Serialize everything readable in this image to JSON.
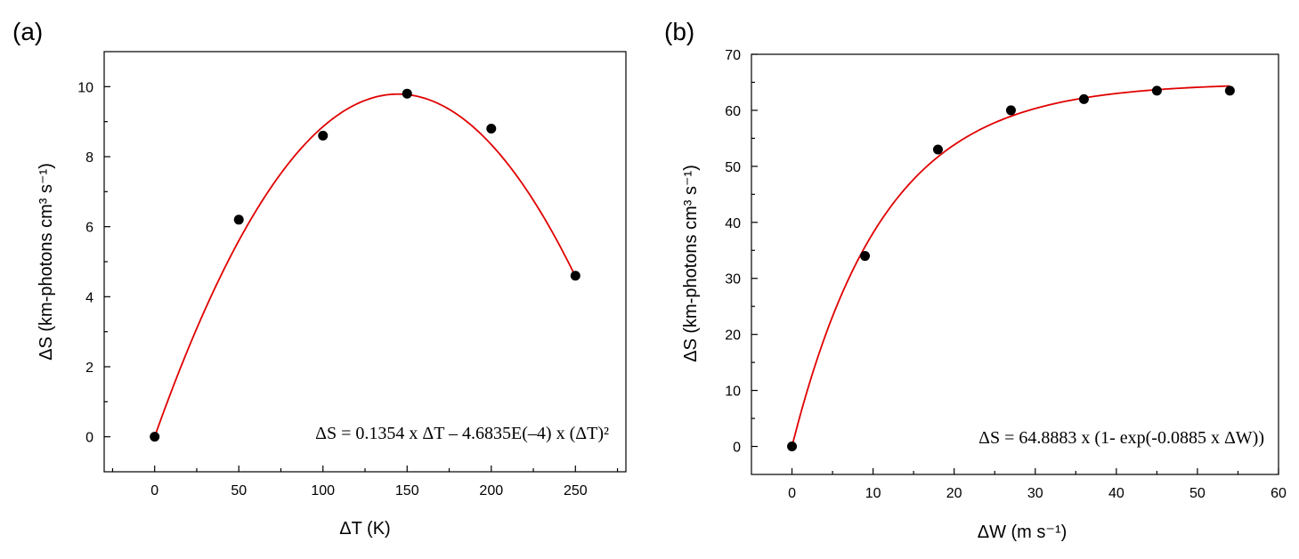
{
  "chart_data": [
    {
      "type": "scatter",
      "panel_label": "(a)",
      "xlabel": "ΔT (K)",
      "ylabel": "ΔS (km-photons cm³ s⁻¹)",
      "xlim": [
        -30,
        280
      ],
      "ylim": [
        -1,
        11
      ],
      "xticks": [
        0,
        50,
        100,
        150,
        200,
        250
      ],
      "yticks": [
        0,
        2,
        4,
        6,
        8,
        10
      ],
      "series": [
        {
          "name": "data",
          "x": [
            0,
            50,
            100,
            150,
            200,
            250
          ],
          "y": [
            0.0,
            6.2,
            8.6,
            9.8,
            8.8,
            4.6
          ]
        }
      ],
      "fit": {
        "model": "quadratic",
        "a": 0.1354,
        "b": -0.00046835,
        "x_range": [
          0,
          250
        ],
        "equation_text": "ΔS = 0.1354 x ΔT – 4.6835E(–4) x (ΔT)²",
        "color": "#e00000"
      }
    },
    {
      "type": "scatter",
      "panel_label": "(b)",
      "xlabel": "ΔW (m s⁻¹)",
      "ylabel": "ΔS (km-photons cm³ s⁻¹)",
      "xlim": [
        -5,
        60
      ],
      "ylim": [
        -5,
        70
      ],
      "xticks": [
        0,
        10,
        20,
        30,
        40,
        50,
        60
      ],
      "yticks": [
        0,
        10,
        20,
        30,
        40,
        50,
        60,
        70
      ],
      "series": [
        {
          "name": "data",
          "x": [
            0,
            9,
            18,
            27,
            36,
            45,
            54
          ],
          "y": [
            0.0,
            34.0,
            53.0,
            60.0,
            62.0,
            63.5,
            63.5
          ]
        }
      ],
      "fit": {
        "model": "exponential_saturation",
        "A": 64.8883,
        "k": 0.0885,
        "x_range": [
          0,
          54
        ],
        "equation_text": "ΔS = 64.8883 x (1- exp(-0.0885 x ΔW))",
        "color": "#e00000"
      }
    }
  ]
}
